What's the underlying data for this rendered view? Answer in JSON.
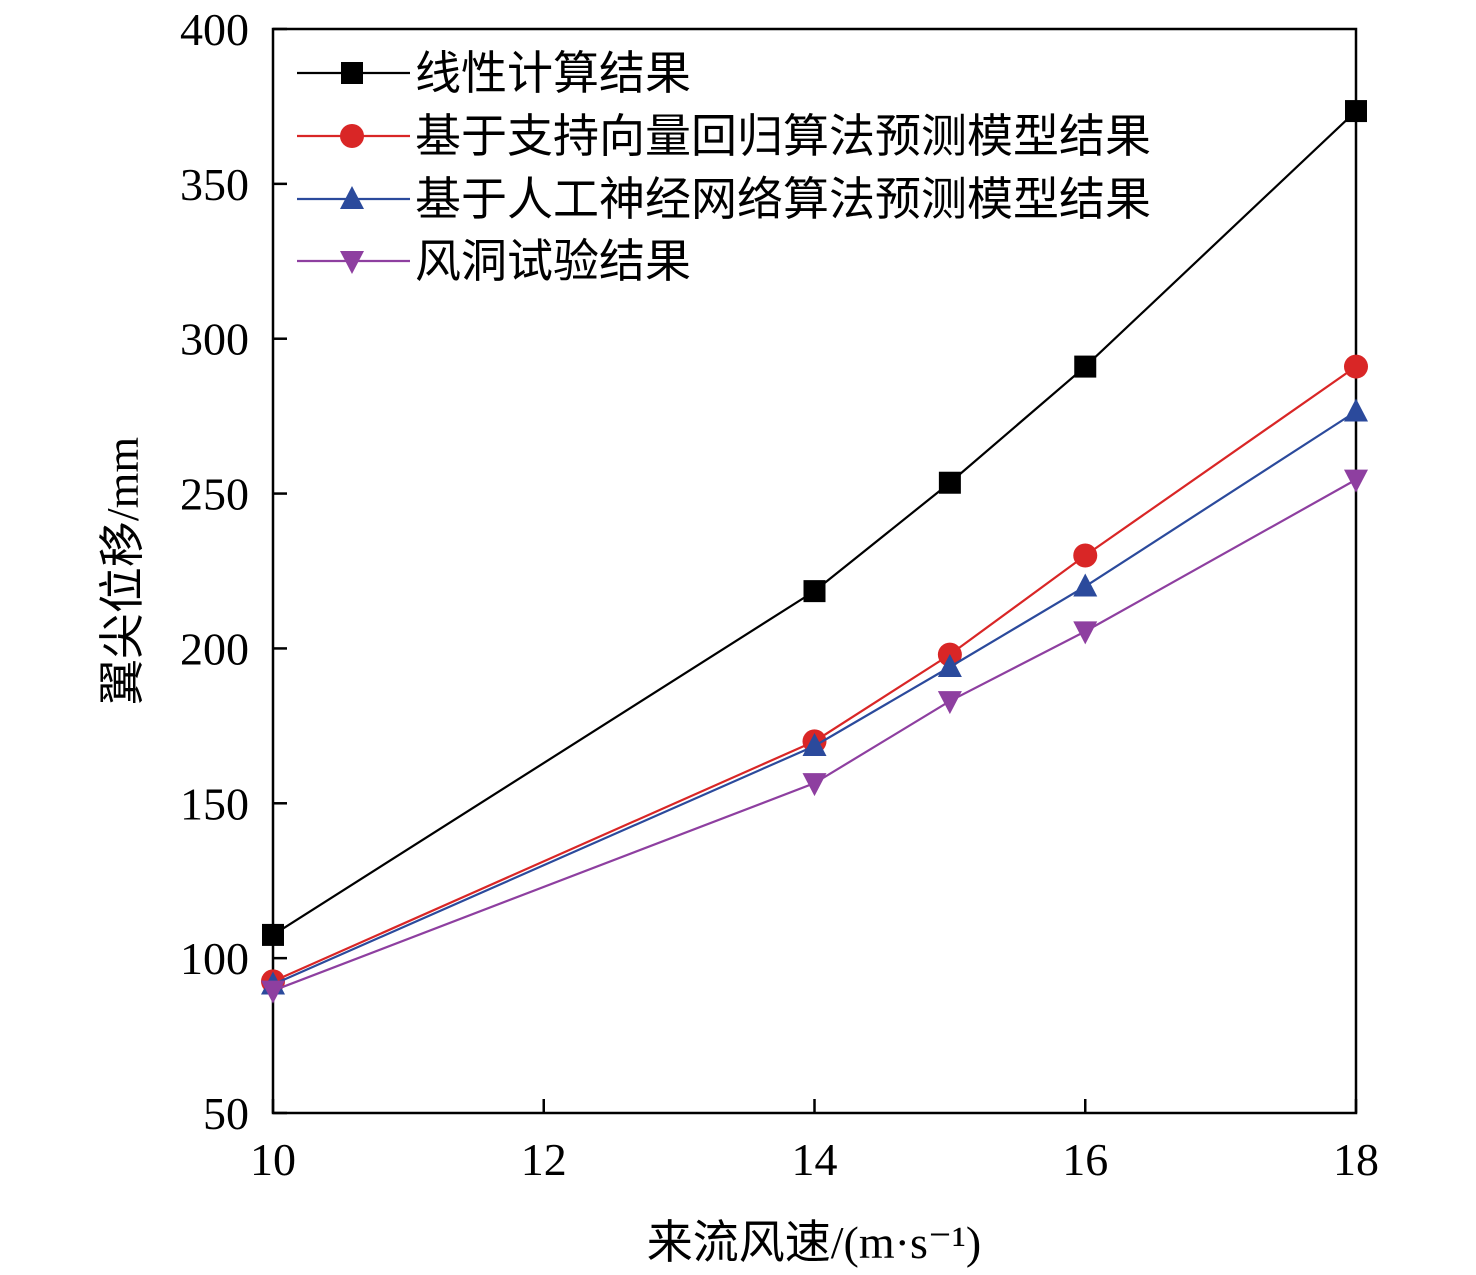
{
  "chart_data": {
    "type": "line",
    "title": "",
    "xlabel": "来流风速/(m·s⁻¹)",
    "ylabel": "翼尖位移/mm",
    "xlim": [
      10,
      18
    ],
    "ylim": [
      50,
      400
    ],
    "xticks": [
      10,
      12,
      14,
      16,
      18
    ],
    "yticks": [
      50,
      100,
      150,
      200,
      250,
      300,
      350,
      400
    ],
    "grid": false,
    "legend_position": "top-left",
    "x": [
      10,
      14,
      15,
      16,
      18
    ],
    "series": [
      {
        "name": "线性计算结果",
        "color": "#000000",
        "marker": "square",
        "values": [
          107.5,
          218.5,
          253.5,
          291,
          373.5
        ]
      },
      {
        "name": "基于支持向量回归算法预测模型结果",
        "color": "#d92626",
        "marker": "circle",
        "values": [
          92.5,
          170,
          198,
          230,
          291
        ]
      },
      {
        "name": "基于人工神经网络算法预测模型结果",
        "color": "#2b4a9c",
        "marker": "triangle-up",
        "values": [
          91.5,
          168.5,
          194,
          220,
          276.5
        ]
      },
      {
        "name": "风洞试验结果",
        "color": "#8e3fa0",
        "marker": "triangle-down",
        "values": [
          89.5,
          156.5,
          183,
          205.5,
          254.5
        ]
      }
    ]
  }
}
